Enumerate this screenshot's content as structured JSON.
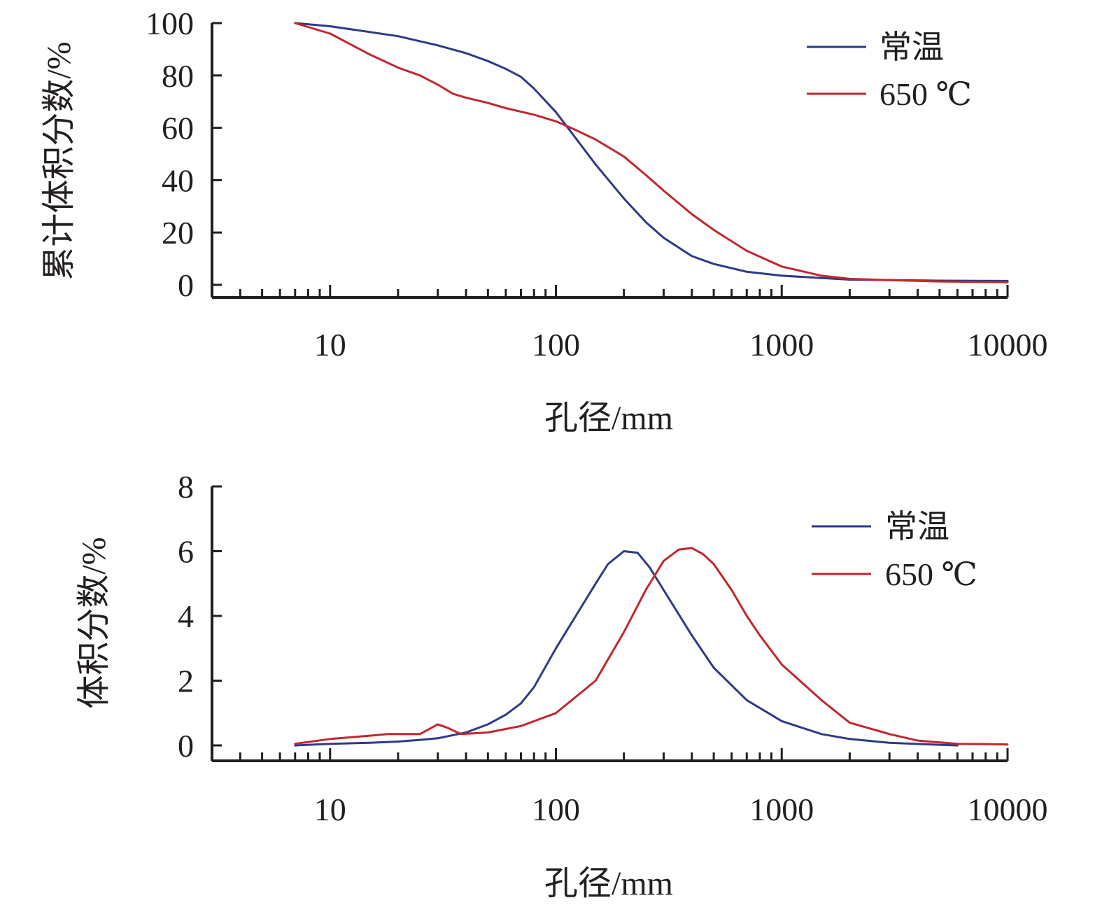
{
  "chart_data": [
    {
      "type": "line",
      "title": "",
      "xlabel": "孔径/mm",
      "ylabel": "累计体积分数/%",
      "xscale": "log",
      "xlim": [
        3,
        10000
      ],
      "ylim": [
        0,
        100
      ],
      "xticks": [
        "10",
        "100",
        "1000",
        "10000"
      ],
      "yticks": [
        "0",
        "20",
        "40",
        "60",
        "80",
        "100"
      ],
      "grid": false,
      "legend": "top-right",
      "series": [
        {
          "name": "常温",
          "color": "#2e3a87",
          "points": [
            [
              7,
              100
            ],
            [
              10,
              98.8
            ],
            [
              20,
              95
            ],
            [
              30,
              91.5
            ],
            [
              40,
              88.5
            ],
            [
              50,
              85.5
            ],
            [
              60,
              82.5
            ],
            [
              70,
              79.5
            ],
            [
              80,
              75
            ],
            [
              100,
              66
            ],
            [
              120,
              57
            ],
            [
              150,
              46
            ],
            [
              200,
              33
            ],
            [
              250,
              24
            ],
            [
              300,
              18
            ],
            [
              400,
              11
            ],
            [
              500,
              8
            ],
            [
              700,
              5
            ],
            [
              1000,
              3.5
            ],
            [
              2000,
              2
            ],
            [
              5000,
              1.6
            ],
            [
              10000,
              1.5
            ]
          ]
        },
        {
          "name": "650 ℃",
          "color": "#c1272d",
          "points": [
            [
              7,
              100
            ],
            [
              10,
              96
            ],
            [
              15,
              88
            ],
            [
              20,
              83
            ],
            [
              25,
              80
            ],
            [
              30,
              76.5
            ],
            [
              35,
              73
            ],
            [
              40,
              71.5
            ],
            [
              50,
              69.5
            ],
            [
              60,
              67.5
            ],
            [
              80,
              65
            ],
            [
              100,
              62.5
            ],
            [
              120,
              59.5
            ],
            [
              150,
              55.5
            ],
            [
              200,
              49
            ],
            [
              250,
              42
            ],
            [
              300,
              36
            ],
            [
              400,
              27
            ],
            [
              500,
              21
            ],
            [
              700,
              13
            ],
            [
              1000,
              7
            ],
            [
              1500,
              3.5
            ],
            [
              2000,
              2.3
            ],
            [
              3000,
              1.8
            ],
            [
              5000,
              1.3
            ],
            [
              10000,
              1
            ]
          ]
        }
      ]
    },
    {
      "type": "line",
      "title": "",
      "xlabel": "孔径/mm",
      "ylabel": "体积分数/%",
      "xscale": "log",
      "xlim": [
        3,
        10000
      ],
      "ylim": [
        0,
        8
      ],
      "xticks": [
        "10",
        "100",
        "1000",
        "10000"
      ],
      "yticks": [
        "0",
        "2",
        "4",
        "6",
        "8"
      ],
      "grid": false,
      "legend": "top-right",
      "series": [
        {
          "name": "常温",
          "color": "#2e3a87",
          "points": [
            [
              7,
              0
            ],
            [
              10,
              0.05
            ],
            [
              15,
              0.08
            ],
            [
              20,
              0.12
            ],
            [
              25,
              0.17
            ],
            [
              30,
              0.22
            ],
            [
              40,
              0.4
            ],
            [
              50,
              0.65
            ],
            [
              60,
              0.95
            ],
            [
              70,
              1.3
            ],
            [
              80,
              1.8
            ],
            [
              100,
              3.0
            ],
            [
              120,
              3.9
            ],
            [
              150,
              5.0
            ],
            [
              170,
              5.6
            ],
            [
              200,
              6.0
            ],
            [
              230,
              5.95
            ],
            [
              260,
              5.5
            ],
            [
              300,
              4.8
            ],
            [
              400,
              3.4
            ],
            [
              500,
              2.4
            ],
            [
              700,
              1.4
            ],
            [
              1000,
              0.75
            ],
            [
              1500,
              0.35
            ],
            [
              2000,
              0.2
            ],
            [
              3000,
              0.08
            ],
            [
              5000,
              0.02
            ],
            [
              6000,
              0
            ]
          ]
        },
        {
          "name": "650 ℃",
          "color": "#c1272d",
          "points": [
            [
              7,
              0.05
            ],
            [
              10,
              0.2
            ],
            [
              15,
              0.3
            ],
            [
              18,
              0.35
            ],
            [
              25,
              0.35
            ],
            [
              30,
              0.65
            ],
            [
              33,
              0.55
            ],
            [
              38,
              0.35
            ],
            [
              50,
              0.4
            ],
            [
              70,
              0.6
            ],
            [
              100,
              1.0
            ],
            [
              150,
              2.0
            ],
            [
              200,
              3.5
            ],
            [
              250,
              4.8
            ],
            [
              300,
              5.7
            ],
            [
              350,
              6.05
            ],
            [
              400,
              6.1
            ],
            [
              450,
              5.9
            ],
            [
              500,
              5.6
            ],
            [
              600,
              4.8
            ],
            [
              700,
              4.0
            ],
            [
              800,
              3.4
            ],
            [
              1000,
              2.5
            ],
            [
              1500,
              1.4
            ],
            [
              2000,
              0.7
            ],
            [
              3000,
              0.35
            ],
            [
              4000,
              0.15
            ],
            [
              6000,
              0.05
            ],
            [
              10000,
              0.03
            ]
          ]
        }
      ]
    }
  ]
}
